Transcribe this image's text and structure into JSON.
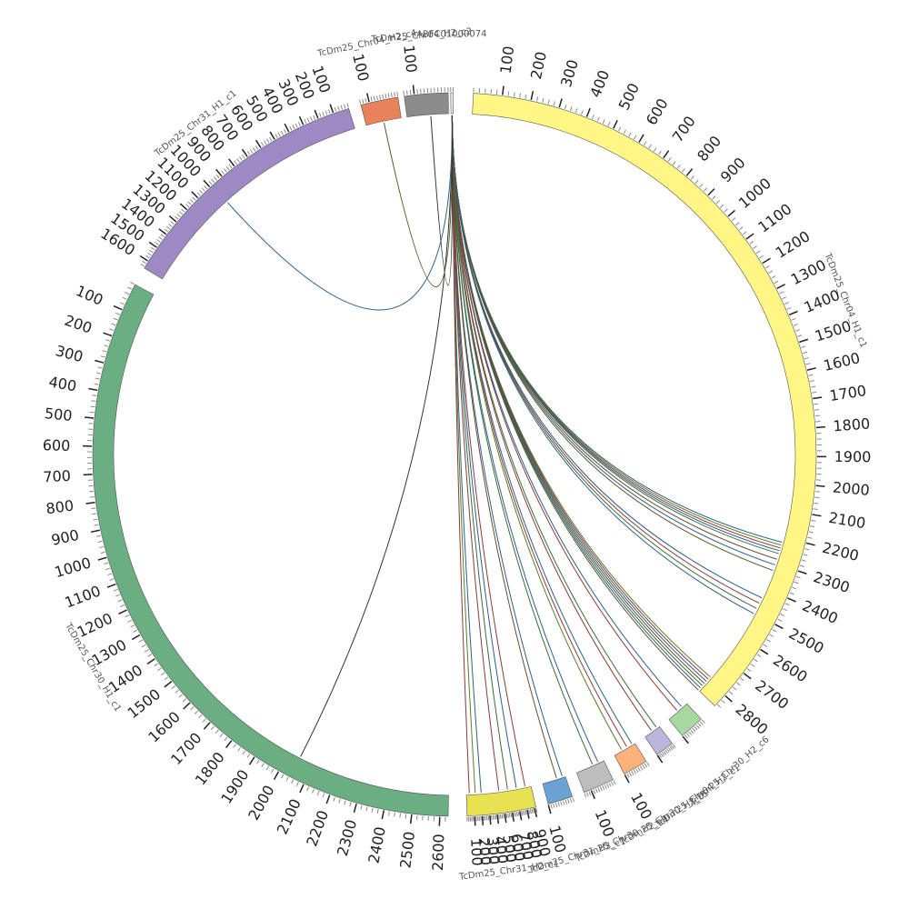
{
  "chart_data": {
    "type": "circos",
    "tick_unit": 100,
    "segments": [
      {
        "id": "chr04_h1",
        "name": "TcDm25_Chr04_H1_c1",
        "start_deg": 3,
        "end_deg": 134,
        "length": 2850,
        "major_every": 100,
        "color": "#fff685"
      },
      {
        "id": "chr30_h2",
        "name": "TcDm25_Chr30_H2_c6",
        "start_deg": 137,
        "end_deg": 141,
        "length": 100,
        "major_every": 100,
        "label_ticks": false,
        "color": "#a6d8a0"
      },
      {
        "id": "chr04_h2",
        "name": "TcDm25_Chr04_H2_c1",
        "start_deg": 143,
        "end_deg": 146,
        "length": 100,
        "major_every": 100,
        "label_ticks": false,
        "color": "#bdb6dc"
      },
      {
        "id": "chr30_h2b",
        "name": "TcDm25_Chr30_H2_c5",
        "start_deg": 148,
        "end_deg": 152,
        "length": 100,
        "major_every": 100,
        "color": "#fdb27a"
      },
      {
        "id": "chr30_h2c",
        "name": "TcDm25_Chr30_H2_c4",
        "start_deg": 154,
        "end_deg": 159,
        "length": 130,
        "major_every": 100,
        "color": "#bdbdbd"
      },
      {
        "id": "chr31_h3",
        "name": "TcDm25_Chr31_H3_c1",
        "start_deg": 161,
        "end_deg": 165,
        "length": 100,
        "major_every": 100,
        "color": "#6aa2d4"
      },
      {
        "id": "chr31_h2",
        "name": "TcDm25_Chr31_H2_c1",
        "start_deg": 167,
        "end_deg": 178,
        "length": 920,
        "major_every": 100,
        "reverse": true,
        "color": "#e8e151"
      },
      {
        "id": "chr30_h1",
        "name": "TcDm25_Chr30_H1_c1",
        "start_deg": 181,
        "end_deg": 298,
        "length": 2630,
        "major_every": 100,
        "reverse": true,
        "color": "#6aae82"
      },
      {
        "id": "chr31_h1",
        "name": "TcDm25_Chr31_H1_c1",
        "start_deg": 301,
        "end_deg": 343,
        "length": 1650,
        "major_every": 100,
        "reverse": true,
        "color": "#9e89c5"
      },
      {
        "id": "chr04_c",
        "name": "TcDm25_Chr04_H2_c4",
        "start_deg": 345,
        "end_deg": 351,
        "length": 130,
        "major_every": 100,
        "reverse": true,
        "color": "#e8825a"
      },
      {
        "id": "chr04_d",
        "name": "TcDm25_Chr04_H2_c2",
        "start_deg": 352,
        "end_deg": 359,
        "length": 130,
        "major_every": 100,
        "reverse": true,
        "color": "#8c8c8c"
      },
      {
        "id": "abfc",
        "name": "ABFC01000074",
        "start_deg": 359.4,
        "end_deg": 359.8,
        "length": 10,
        "major_every": 1000,
        "label_ticks": false,
        "color": "#eeeeee"
      }
    ],
    "links": [
      {
        "from_deg": 359.6,
        "to_deg": 105,
        "color": "#2d5f8a"
      },
      {
        "from_deg": 359.6,
        "to_deg": 105.5,
        "color": "#5a7d2a"
      },
      {
        "from_deg": 359.6,
        "to_deg": 106,
        "color": "#8b3a3a"
      },
      {
        "from_deg": 359.6,
        "to_deg": 106.5,
        "color": "#2d5f8a"
      },
      {
        "from_deg": 359.6,
        "to_deg": 107,
        "color": "#3a6b3a"
      },
      {
        "from_deg": 359.6,
        "to_deg": 108,
        "color": "#6b4a2a"
      },
      {
        "from_deg": 359.6,
        "to_deg": 109,
        "color": "#2d5f8a"
      },
      {
        "from_deg": 359.6,
        "to_deg": 110,
        "color": "#5a5a2a"
      },
      {
        "from_deg": 359.6,
        "to_deg": 115,
        "color": "#2d5f8a"
      },
      {
        "from_deg": 359.6,
        "to_deg": 116,
        "color": "#8b3a3a"
      },
      {
        "from_deg": 359.6,
        "to_deg": 117,
        "color": "#3a6b3a"
      },
      {
        "from_deg": 359.6,
        "to_deg": 118,
        "color": "#2d5f8a"
      },
      {
        "from_deg": 359.6,
        "to_deg": 131,
        "color": "#5a7d2a"
      },
      {
        "from_deg": 359.6,
        "to_deg": 131.5,
        "color": "#8b3a3a"
      },
      {
        "from_deg": 359.6,
        "to_deg": 132,
        "color": "#2d5f8a"
      },
      {
        "from_deg": 359.6,
        "to_deg": 132.5,
        "color": "#6b4a2a"
      },
      {
        "from_deg": 359.6,
        "to_deg": 133,
        "color": "#3a6b3a"
      },
      {
        "from_deg": 359.6,
        "to_deg": 133.5,
        "color": "#2d5f8a"
      },
      {
        "from_deg": 359.6,
        "to_deg": 134,
        "color": "#5a5a2a"
      },
      {
        "from_deg": 359.6,
        "to_deg": 138,
        "color": "#2d5f8a"
      },
      {
        "from_deg": 359.6,
        "to_deg": 139,
        "color": "#8b3a3a"
      },
      {
        "from_deg": 359.6,
        "to_deg": 143.5,
        "color": "#3a6b3a"
      },
      {
        "from_deg": 359.6,
        "to_deg": 144.5,
        "color": "#8b3a3a"
      },
      {
        "from_deg": 359.6,
        "to_deg": 148.5,
        "color": "#2d5f8a"
      },
      {
        "from_deg": 359.6,
        "to_deg": 149.5,
        "color": "#8b3a3a"
      },
      {
        "from_deg": 359.6,
        "to_deg": 150.5,
        "color": "#5a7d2a"
      },
      {
        "from_deg": 359.6,
        "to_deg": 155,
        "color": "#2d5f8a"
      },
      {
        "from_deg": 359.6,
        "to_deg": 156,
        "color": "#3a6b3a"
      },
      {
        "from_deg": 359.6,
        "to_deg": 161.5,
        "color": "#2d5f8a"
      },
      {
        "from_deg": 359.6,
        "to_deg": 162.5,
        "color": "#6b4a2a"
      },
      {
        "from_deg": 359.6,
        "to_deg": 168,
        "color": "#8b3a3a"
      },
      {
        "from_deg": 359.6,
        "to_deg": 169.5,
        "color": "#2d5f8a"
      },
      {
        "from_deg": 359.6,
        "to_deg": 171,
        "color": "#3a6b3a"
      },
      {
        "from_deg": 359.6,
        "to_deg": 172.5,
        "color": "#8b3a3a"
      },
      {
        "from_deg": 359.6,
        "to_deg": 175.5,
        "color": "#2d5f8a"
      },
      {
        "from_deg": 359.6,
        "to_deg": 176.5,
        "color": "#5a7d2a"
      },
      {
        "from_deg": 359.6,
        "to_deg": 177.5,
        "color": "#8b3a3a"
      },
      {
        "from_deg": 359.6,
        "to_deg": 207,
        "color": "#333333"
      },
      {
        "from_deg": 359.6,
        "to_deg": 318,
        "color": "#2d5f8a"
      },
      {
        "from_deg": 359.6,
        "to_deg": 348,
        "color": "#5a5a2a"
      },
      {
        "from_deg": 359.6,
        "to_deg": 356,
        "color": "#333333"
      }
    ]
  }
}
